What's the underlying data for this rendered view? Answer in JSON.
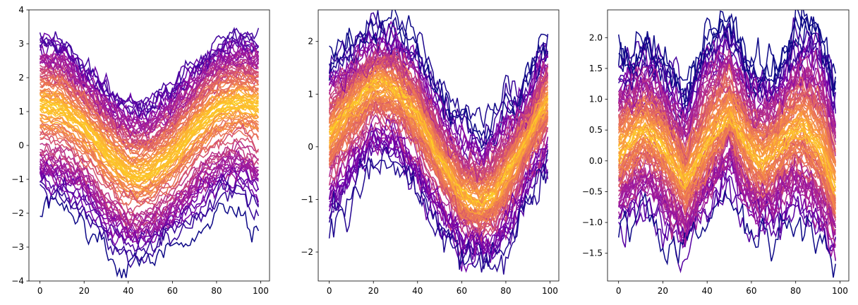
{
  "chart_data": [
    {
      "type": "line",
      "title": "",
      "xlabel": "",
      "ylabel": "",
      "xlim": [
        -5,
        104
      ],
      "ylim": [
        -4,
        4
      ],
      "xticks": [
        0,
        20,
        40,
        60,
        80,
        100
      ],
      "yticks": [
        -4,
        -3,
        -2,
        -1,
        0,
        1,
        2,
        3,
        4
      ],
      "ytick_labels": [
        "−4",
        "−3",
        "−2",
        "−1",
        "0",
        "1",
        "2",
        "3",
        "4"
      ],
      "grid": false,
      "legend": null,
      "colormap": "plasma",
      "n_series_approx": 100,
      "n_points": 100,
      "shape": "cosine (peak at x=0 and x≈90, trough at x≈45), per-series vertical offset + noise",
      "mean_curve": {
        "x": [
          0,
          10,
          20,
          30,
          40,
          45,
          50,
          60,
          70,
          80,
          90,
          99
        ],
        "y": [
          1.2,
          1.1,
          0.6,
          -0.2,
          -0.8,
          -0.9,
          -0.8,
          -0.3,
          0.5,
          1.1,
          1.3,
          1.2
        ]
      },
      "envelope_upper": {
        "x": [
          0,
          10,
          20,
          30,
          40,
          50,
          60,
          70,
          80,
          90,
          99
        ],
        "y": [
          3.65,
          3.5,
          2.7,
          2.2,
          1.7,
          1.7,
          2.2,
          2.8,
          3.4,
          3.6,
          3.5
        ]
      },
      "envelope_lower": {
        "x": [
          0,
          10,
          20,
          30,
          40,
          50,
          60,
          70,
          80,
          90,
          99
        ],
        "y": [
          -1.7,
          -1.9,
          -2.4,
          -3.2,
          -3.6,
          -3.5,
          -3.0,
          -2.5,
          -2.0,
          -1.7,
          -2.3
        ]
      }
    },
    {
      "type": "line",
      "title": "",
      "xlabel": "",
      "ylabel": "",
      "xlim": [
        -5,
        104
      ],
      "ylim": [
        -2.55,
        2.6
      ],
      "xticks": [
        0,
        20,
        40,
        60,
        80,
        100
      ],
      "yticks": [
        -2,
        -1,
        0,
        1,
        2
      ],
      "ytick_labels": [
        "−2",
        "−1",
        "0",
        "1",
        "2"
      ],
      "grid": false,
      "legend": null,
      "colormap": "plasma",
      "n_series_approx": 100,
      "n_points": 100,
      "shape": "sine (peak at x≈22, trough at x≈68), per-series offset + noise",
      "mean_curve": {
        "x": [
          0,
          10,
          20,
          25,
          30,
          40,
          50,
          60,
          68,
          75,
          85,
          95,
          99
        ],
        "y": [
          0.2,
          0.8,
          1.2,
          1.2,
          1.1,
          0.6,
          -0.2,
          -0.9,
          -1.1,
          -0.9,
          -0.2,
          0.6,
          0.9
        ]
      },
      "envelope_upper": {
        "x": [
          0,
          10,
          20,
          30,
          40,
          50,
          60,
          70,
          80,
          90,
          97,
          99
        ],
        "y": [
          1.7,
          1.9,
          2.3,
          2.3,
          1.9,
          1.0,
          0.5,
          0.35,
          0.8,
          1.3,
          2.1,
          2.0
        ]
      },
      "envelope_lower": {
        "x": [
          0,
          10,
          20,
          30,
          40,
          50,
          60,
          70,
          80,
          90,
          99
        ],
        "y": [
          -1.6,
          -0.9,
          -0.3,
          -0.4,
          -0.9,
          -1.7,
          -2.2,
          -2.3,
          -2.0,
          -1.0,
          -0.5
        ]
      }
    },
    {
      "type": "line",
      "title": "",
      "xlabel": "",
      "ylabel": "",
      "xlim": [
        -5,
        104
      ],
      "ylim": [
        -1.95,
        2.45
      ],
      "xticks": [
        0,
        20,
        40,
        60,
        80,
        100
      ],
      "yticks": [
        -1.5,
        -1.0,
        -0.5,
        0.0,
        0.5,
        1.0,
        1.5,
        2.0
      ],
      "ytick_labels": [
        "−1.5",
        "−1.0",
        "−0.5",
        "0.0",
        "0.5",
        "1.0",
        "1.5",
        "2.0"
      ],
      "grid": false,
      "legend": null,
      "colormap": "plasma",
      "n_series_approx": 100,
      "n_points": 99,
      "shape": "three humps (peaks at x≈12, 50, 83; troughs at x≈30, 65), per-series offset + noise",
      "mean_curve": {
        "x": [
          0,
          12,
          20,
          30,
          40,
          50,
          58,
          65,
          75,
          83,
          92,
          98
        ],
        "y": [
          0.2,
          0.6,
          0.3,
          -0.3,
          0.3,
          0.8,
          0.3,
          0.0,
          0.4,
          0.6,
          0.2,
          -0.4
        ]
      },
      "envelope_upper": {
        "x": [
          0,
          12,
          20,
          30,
          40,
          50,
          60,
          70,
          80,
          90,
          98
        ],
        "y": [
          1.6,
          1.8,
          1.6,
          1.05,
          2.0,
          2.25,
          1.4,
          1.35,
          2.1,
          2.1,
          1.15
        ]
      },
      "envelope_lower": {
        "x": [
          0,
          10,
          20,
          30,
          40,
          50,
          60,
          70,
          80,
          90,
          98
        ],
        "y": [
          -1.3,
          -0.9,
          -1.3,
          -1.6,
          -1.0,
          -0.4,
          -1.3,
          -1.3,
          -0.9,
          -1.3,
          -1.8
        ]
      }
    }
  ]
}
